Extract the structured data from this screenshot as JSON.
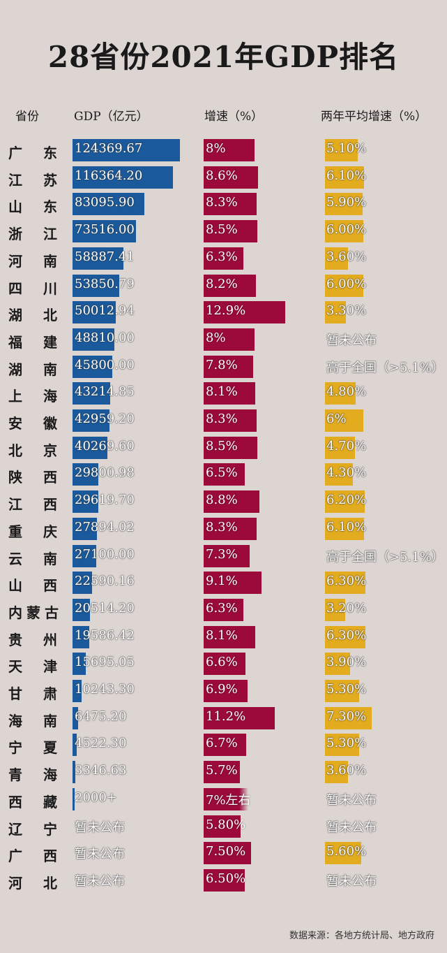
{
  "chart_data": {
    "type": "bar",
    "title": "28省份2021年GDP排名",
    "headers": {
      "province": "省份",
      "gdp": "GDP（亿元）",
      "growth": "增速（%）",
      "avg_growth": "两年平均增速（%）"
    },
    "colors": {
      "gdp": "#1a5a9c",
      "growth": "#9b0a3a",
      "avg_growth": "#e3ab1e"
    },
    "rows": [
      {
        "province": "广东",
        "gdp": "124369.67",
        "gdp_value": 124369.67,
        "growth": "8%",
        "growth_value": 8,
        "avg": "5.10%",
        "avg_value": 5.1
      },
      {
        "province": "江苏",
        "gdp": "116364.20",
        "gdp_value": 116364.2,
        "growth": "8.6%",
        "growth_value": 8.6,
        "avg": "6.10%",
        "avg_value": 6.1
      },
      {
        "province": "山东",
        "gdp": "83095.90",
        "gdp_value": 83095.9,
        "growth": "8.3%",
        "growth_value": 8.3,
        "avg": "5.90%",
        "avg_value": 5.9
      },
      {
        "province": "浙江",
        "gdp": "73516.00",
        "gdp_value": 73516,
        "growth": "8.5%",
        "growth_value": 8.5,
        "avg": "6.00%",
        "avg_value": 6.0
      },
      {
        "province": "河南",
        "gdp": "58887.41",
        "gdp_value": 58887.41,
        "growth": "6.3%",
        "growth_value": 6.3,
        "avg": "3.60%",
        "avg_value": 3.6
      },
      {
        "province": "四川",
        "gdp": "53850.79",
        "gdp_value": 53850.79,
        "growth": "8.2%",
        "growth_value": 8.2,
        "avg": "6.00%",
        "avg_value": 6.0
      },
      {
        "province": "湖北",
        "gdp": "50012.94",
        "gdp_value": 50012.94,
        "growth": "12.9%",
        "growth_value": 12.9,
        "avg": "3.30%",
        "avg_value": 3.3
      },
      {
        "province": "福建",
        "gdp": "48810.00",
        "gdp_value": 48810,
        "growth": "8%",
        "growth_value": 8,
        "avg": "暂未公布",
        "avg_value": null
      },
      {
        "province": "湖南",
        "gdp": "45800.00",
        "gdp_value": 45800,
        "growth": "7.8%",
        "growth_value": 7.8,
        "avg": "高于全国（>5.1%）",
        "avg_value": null
      },
      {
        "province": "上海",
        "gdp": "43214.85",
        "gdp_value": 43214.85,
        "growth": "8.1%",
        "growth_value": 8.1,
        "avg": "4.80%",
        "avg_value": 4.8
      },
      {
        "province": "安徽",
        "gdp": "42959.20",
        "gdp_value": 42959.2,
        "growth": "8.3%",
        "growth_value": 8.3,
        "avg": "6%",
        "avg_value": 6
      },
      {
        "province": "北京",
        "gdp": "40269.60",
        "gdp_value": 40269.6,
        "growth": "8.5%",
        "growth_value": 8.5,
        "avg": "4.70%",
        "avg_value": 4.7
      },
      {
        "province": "陕西",
        "gdp": "29800.98",
        "gdp_value": 29800.98,
        "growth": "6.5%",
        "growth_value": 6.5,
        "avg": "4.30%",
        "avg_value": 4.3
      },
      {
        "province": "江西",
        "gdp": "29619.70",
        "gdp_value": 29619.7,
        "growth": "8.8%",
        "growth_value": 8.8,
        "avg": "6.20%",
        "avg_value": 6.2
      },
      {
        "province": "重庆",
        "gdp": "27894.02",
        "gdp_value": 27894.02,
        "growth": "8.3%",
        "growth_value": 8.3,
        "avg": "6.10%",
        "avg_value": 6.1
      },
      {
        "province": "云南",
        "gdp": "27100.00",
        "gdp_value": 27100,
        "growth": "7.3%",
        "growth_value": 7.3,
        "avg": "高于全国（>5.1%）",
        "avg_value": null
      },
      {
        "province": "山西",
        "gdp": "22590.16",
        "gdp_value": 22590.16,
        "growth": "9.1%",
        "growth_value": 9.1,
        "avg": "6.30%",
        "avg_value": 6.3
      },
      {
        "province": "内蒙古",
        "gdp": "20514.20",
        "gdp_value": 20514.2,
        "growth": "6.3%",
        "growth_value": 6.3,
        "avg": "3.20%",
        "avg_value": 3.2
      },
      {
        "province": "贵州",
        "gdp": "19586.42",
        "gdp_value": 19586.42,
        "growth": "8.1%",
        "growth_value": 8.1,
        "avg": "6.30%",
        "avg_value": 6.3
      },
      {
        "province": "天津",
        "gdp": "15695.05",
        "gdp_value": 15695.05,
        "growth": "6.6%",
        "growth_value": 6.6,
        "avg": "3.90%",
        "avg_value": 3.9
      },
      {
        "province": "甘肃",
        "gdp": "10243.30",
        "gdp_value": 10243.3,
        "growth": "6.9%",
        "growth_value": 6.9,
        "avg": "5.30%",
        "avg_value": 5.3
      },
      {
        "province": "海南",
        "gdp": "6475.20",
        "gdp_value": 6475.2,
        "growth": "11.2%",
        "growth_value": 11.2,
        "avg": "7.30%",
        "avg_value": 7.3
      },
      {
        "province": "宁夏",
        "gdp": "4522.30",
        "gdp_value": 4522.3,
        "growth": "6.7%",
        "growth_value": 6.7,
        "avg": "5.30%",
        "avg_value": 5.3
      },
      {
        "province": "青海",
        "gdp": "3346.63",
        "gdp_value": 3346.63,
        "growth": "5.7%",
        "growth_value": 5.7,
        "avg": "3.60%",
        "avg_value": 3.6
      },
      {
        "province": "西藏",
        "gdp": "2000+",
        "gdp_value": 2000,
        "growth": "7%左右",
        "growth_value": 7,
        "avg": "暂未公布",
        "avg_value": null
      },
      {
        "province": "辽宁",
        "gdp": "暂未公布",
        "gdp_value": null,
        "growth": "5.80%",
        "growth_value": 5.8,
        "avg": "暂未公布",
        "avg_value": null
      },
      {
        "province": "广西",
        "gdp": "暂未公布",
        "gdp_value": null,
        "growth": "7.50%",
        "growth_value": 7.5,
        "avg": "5.60%",
        "avg_value": 5.6
      },
      {
        "province": "河北",
        "gdp": "暂未公布",
        "gdp_value": null,
        "growth": "6.50%",
        "growth_value": 6.5,
        "avg": "暂未公布",
        "avg_value": null
      }
    ],
    "source": "数据来源：各地方统计局、地方政府"
  }
}
